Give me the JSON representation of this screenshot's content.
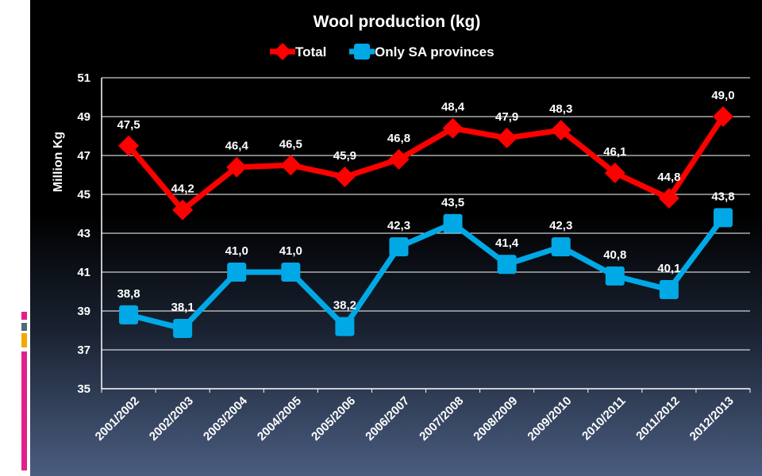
{
  "chart_data": {
    "type": "line",
    "title": "Wool production (kg)",
    "ylabel": "Million Kg",
    "xlabel": "",
    "ylim": [
      35,
      51
    ],
    "yticks": [
      35,
      37,
      39,
      41,
      43,
      45,
      47,
      49,
      51
    ],
    "grid": true,
    "legend_position": "top",
    "categories": [
      "2001/2002",
      "2002/2003",
      "2003/2004",
      "2004/2005",
      "2005/2006",
      "2006/2007",
      "2007/2008",
      "2008/2009",
      "2009/2010",
      "2010/2011",
      "2011/2012",
      "2012/2013"
    ],
    "series": [
      {
        "name": "Total",
        "color": "#ff0000",
        "marker": "diamond",
        "values": [
          47.5,
          44.2,
          46.4,
          46.5,
          45.9,
          46.8,
          48.4,
          47.9,
          48.3,
          46.1,
          44.8,
          49.0
        ],
        "labels": [
          "47,5",
          "44,2",
          "46,4",
          "46,5",
          "45,9",
          "46,8",
          "48,4",
          "47,9",
          "48,3",
          "46,1",
          "44,8",
          "49,0"
        ]
      },
      {
        "name": "Only SA provinces",
        "color": "#00a9e6",
        "marker": "square",
        "values": [
          38.8,
          38.1,
          41.0,
          41.0,
          38.2,
          42.3,
          43.5,
          41.4,
          42.3,
          40.8,
          40.1,
          43.8
        ],
        "labels": [
          "38,8",
          "38,1",
          "41,0",
          "41,0",
          "38,2",
          "42,3",
          "43,5",
          "41,4",
          "42,3",
          "40,8",
          "40,1",
          "43,8"
        ]
      }
    ]
  },
  "decor": {
    "accent_colors": [
      "#e0218a",
      "#4f6a79",
      "#f2a900"
    ]
  }
}
